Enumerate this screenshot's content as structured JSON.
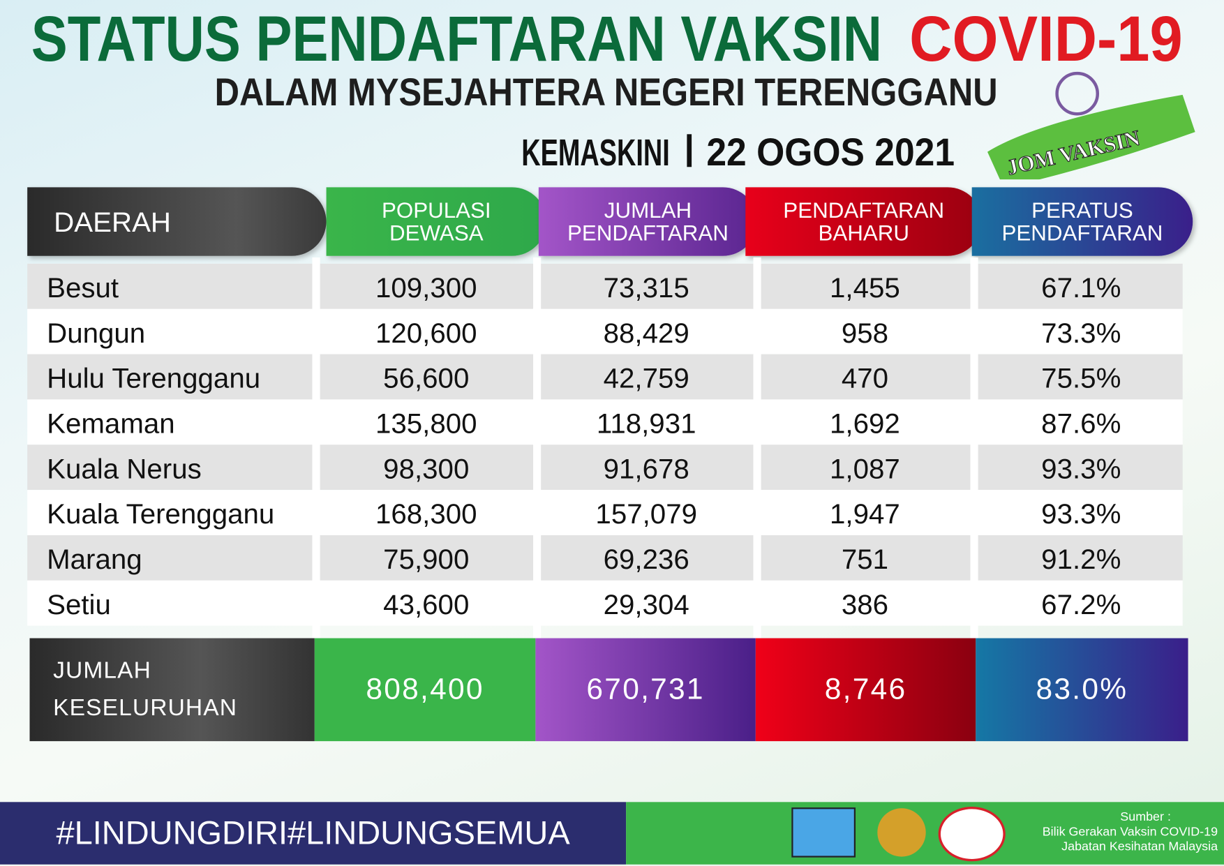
{
  "header": {
    "title_main": "STATUS PENDAFTARAN VAKSIN",
    "title_highlight": "COVID-19",
    "subtitle": "DALAM MYSEJAHTERA NEGERI TERENGGANU",
    "update_label": "KEMASKINI",
    "update_date": "22 OGOS 2021",
    "badge": "JOM VAKSIN"
  },
  "table": {
    "columns": [
      [
        "DAERAH"
      ],
      [
        "POPULASI",
        "DEWASA"
      ],
      [
        "JUMLAH",
        "PENDAFTARAN"
      ],
      [
        "PENDAFTARAN",
        "BAHARU"
      ],
      [
        "PERATUS",
        "PENDAFTARAN"
      ]
    ],
    "rows": [
      [
        "Besut",
        "109,300",
        "73,315",
        "1,455",
        "67.1%"
      ],
      [
        "Dungun",
        "120,600",
        "88,429",
        "958",
        "73.3%"
      ],
      [
        "Hulu Terengganu",
        "56,600",
        "42,759",
        "470",
        "75.5%"
      ],
      [
        "Kemaman",
        "135,800",
        "118,931",
        "1,692",
        "87.6%"
      ],
      [
        "Kuala Nerus",
        "98,300",
        "91,678",
        "1,087",
        "93.3%"
      ],
      [
        "Kuala Terengganu",
        "168,300",
        "157,079",
        "1,947",
        "93.3%"
      ],
      [
        "Marang",
        "75,900",
        "69,236",
        "751",
        "91.2%"
      ],
      [
        "Setiu",
        "43,600",
        "29,304",
        "386",
        "67.2%"
      ]
    ],
    "total": [
      [
        "JUMLAH",
        "KESELURUHAN"
      ],
      "808,400",
      "670,731",
      "8,746",
      "83.0%"
    ]
  },
  "footer": {
    "hashtag": "#LINDUNGDIRI#LINDUNGSEMUA",
    "source": [
      "Sumber :",
      "Bilik Gerakan Vaksin COVID-19",
      "Jabatan Kesihatan Malaysia"
    ]
  }
}
